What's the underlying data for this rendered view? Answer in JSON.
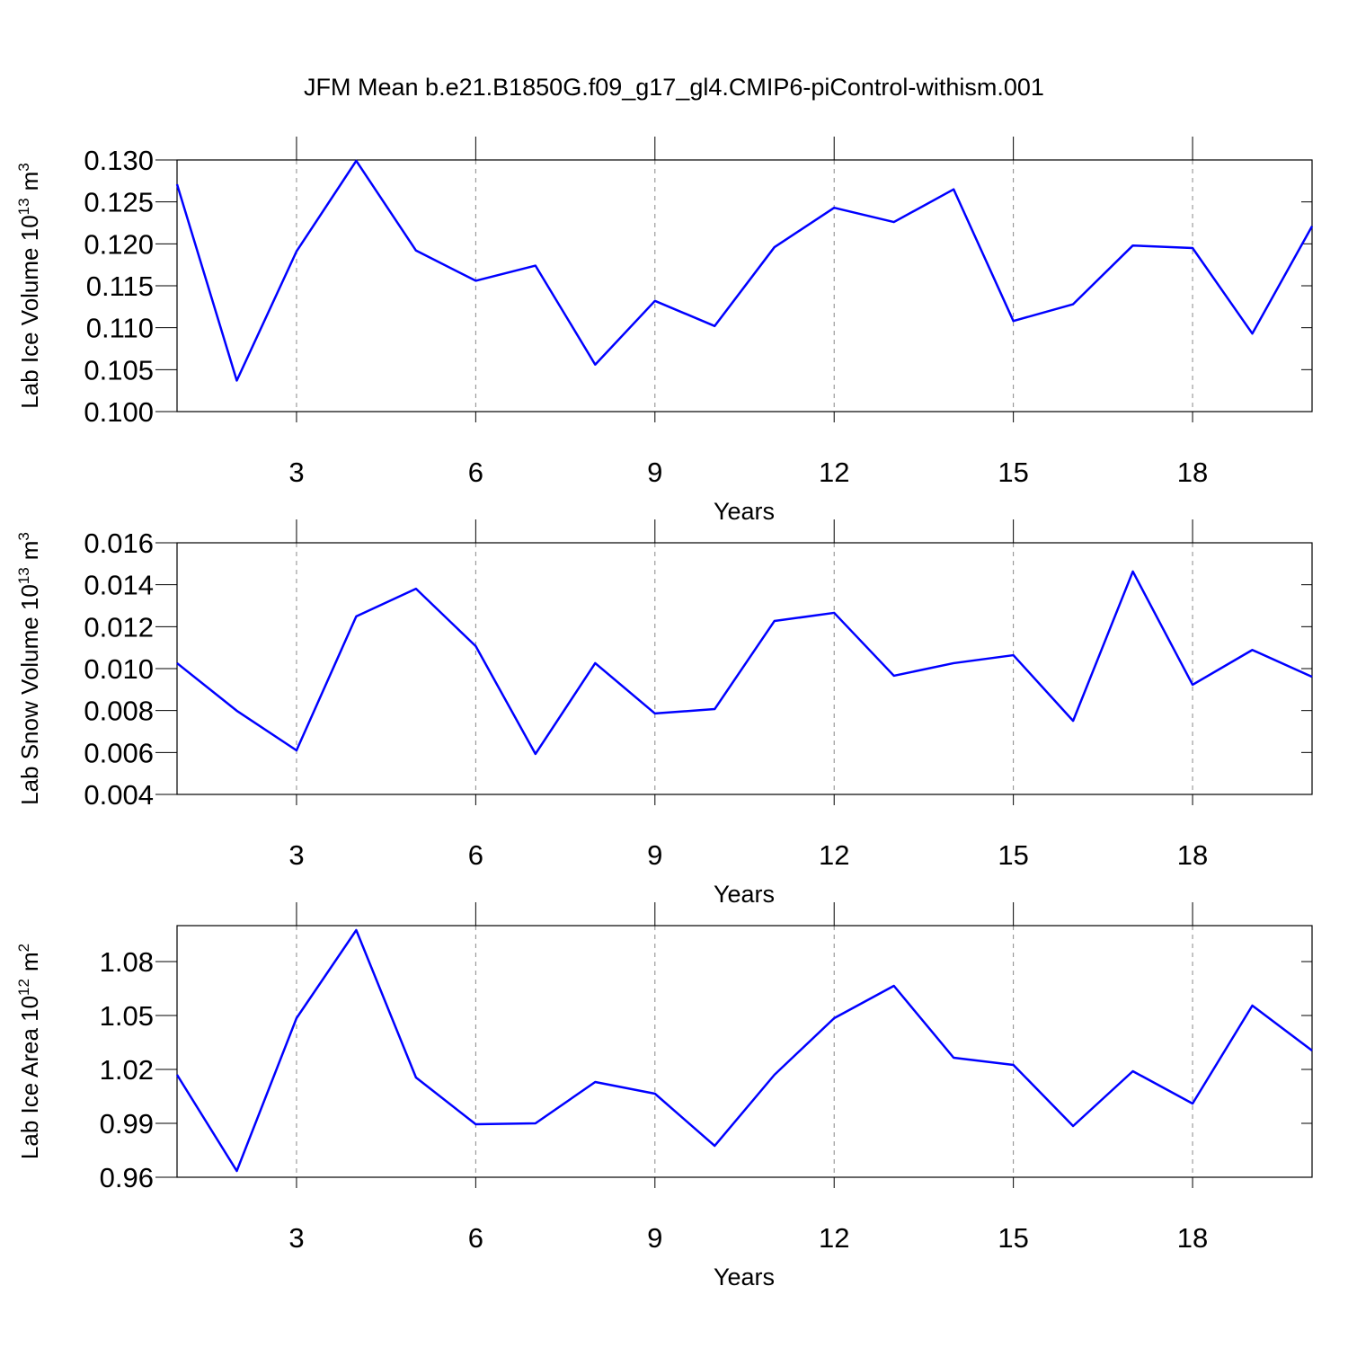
{
  "chart_data": [
    {
      "type": "line",
      "title": "JFM Mean b.e21.B1850G.f09_g17_gl4.CMIP6-piControl-withism.001",
      "ylabel": [
        "Lab Ice Volume 10",
        "13",
        "m",
        "3"
      ],
      "xlabel": "Years",
      "x": [
        1,
        2,
        3,
        4,
        5,
        6,
        7,
        8,
        9,
        10,
        11,
        12,
        13,
        14,
        15,
        16,
        17,
        18,
        19,
        20
      ],
      "series": [
        {
          "color": "#0000ff",
          "values": [
            0.1271,
            0.1037,
            0.1191,
            0.1299,
            0.1192,
            0.1156,
            0.1174,
            0.1056,
            0.1132,
            0.1102,
            0.1196,
            0.1243,
            0.1226,
            0.1265,
            0.1108,
            0.1128,
            0.1198,
            0.1195,
            0.1093,
            0.1221
          ]
        }
      ],
      "xlim": [
        1,
        20
      ],
      "xticks": [
        3,
        6,
        9,
        12,
        15,
        18
      ],
      "xgrid": true,
      "ylim": [
        0.1,
        0.13
      ],
      "yticks": [
        {
          "value": 0.1,
          "label": "0.100"
        },
        {
          "value": 0.105,
          "label": "0.105"
        },
        {
          "value": 0.11,
          "label": "0.110"
        },
        {
          "value": 0.115,
          "label": "0.115"
        },
        {
          "value": 0.12,
          "label": "0.120"
        },
        {
          "value": 0.125,
          "label": "0.125"
        },
        {
          "value": 0.13,
          "label": "0.130"
        }
      ]
    },
    {
      "type": "line",
      "ylabel": [
        "Lab Snow Volume 10",
        "13",
        "m",
        "3"
      ],
      "xlabel": "Years",
      "x": [
        1,
        2,
        3,
        4,
        5,
        6,
        7,
        8,
        9,
        10,
        11,
        12,
        13,
        14,
        15,
        16,
        17,
        18,
        19,
        20
      ],
      "series": [
        {
          "color": "#0000ff",
          "values": [
            0.01026,
            0.00799,
            0.0061,
            0.01249,
            0.01381,
            0.01107,
            0.00593,
            0.01026,
            0.00786,
            0.00807,
            0.01227,
            0.01266,
            0.00966,
            0.01026,
            0.01064,
            0.00751,
            0.01463,
            0.00923,
            0.01089,
            0.00961
          ]
        }
      ],
      "xlim": [
        1,
        20
      ],
      "xticks": [
        3,
        6,
        9,
        12,
        15,
        18
      ],
      "xgrid": true,
      "ylim": [
        0.004,
        0.016
      ],
      "yticks": [
        {
          "value": 0.004,
          "label": "0.004"
        },
        {
          "value": 0.006,
          "label": "0.006"
        },
        {
          "value": 0.008,
          "label": "0.008"
        },
        {
          "value": 0.01,
          "label": "0.010"
        },
        {
          "value": 0.012,
          "label": "0.012"
        },
        {
          "value": 0.014,
          "label": "0.014"
        },
        {
          "value": 0.016,
          "label": "0.016"
        }
      ]
    },
    {
      "type": "line",
      "ylabel": [
        "Lab Ice Area 10",
        "12",
        "m",
        "2"
      ],
      "xlabel": "Years",
      "x": [
        1,
        2,
        3,
        4,
        5,
        6,
        7,
        8,
        9,
        10,
        11,
        12,
        13,
        14,
        15,
        16,
        17,
        18,
        19,
        20
      ],
      "series": [
        {
          "color": "#0000ff",
          "values": [
            1.017,
            0.9635,
            1.0485,
            1.0975,
            1.0155,
            0.9895,
            0.99,
            1.013,
            1.0065,
            0.9775,
            1.017,
            1.0485,
            1.0665,
            1.0265,
            1.0225,
            0.9885,
            1.019,
            1.001,
            1.0555,
            1.0305
          ]
        }
      ],
      "xlim": [
        1,
        20
      ],
      "xticks": [
        3,
        6,
        9,
        12,
        15,
        18
      ],
      "xgrid": true,
      "ylim": [
        0.96,
        1.1
      ],
      "yticks": [
        0.96,
        0.99,
        1.02,
        1.05,
        1.08
      ]
    }
  ]
}
